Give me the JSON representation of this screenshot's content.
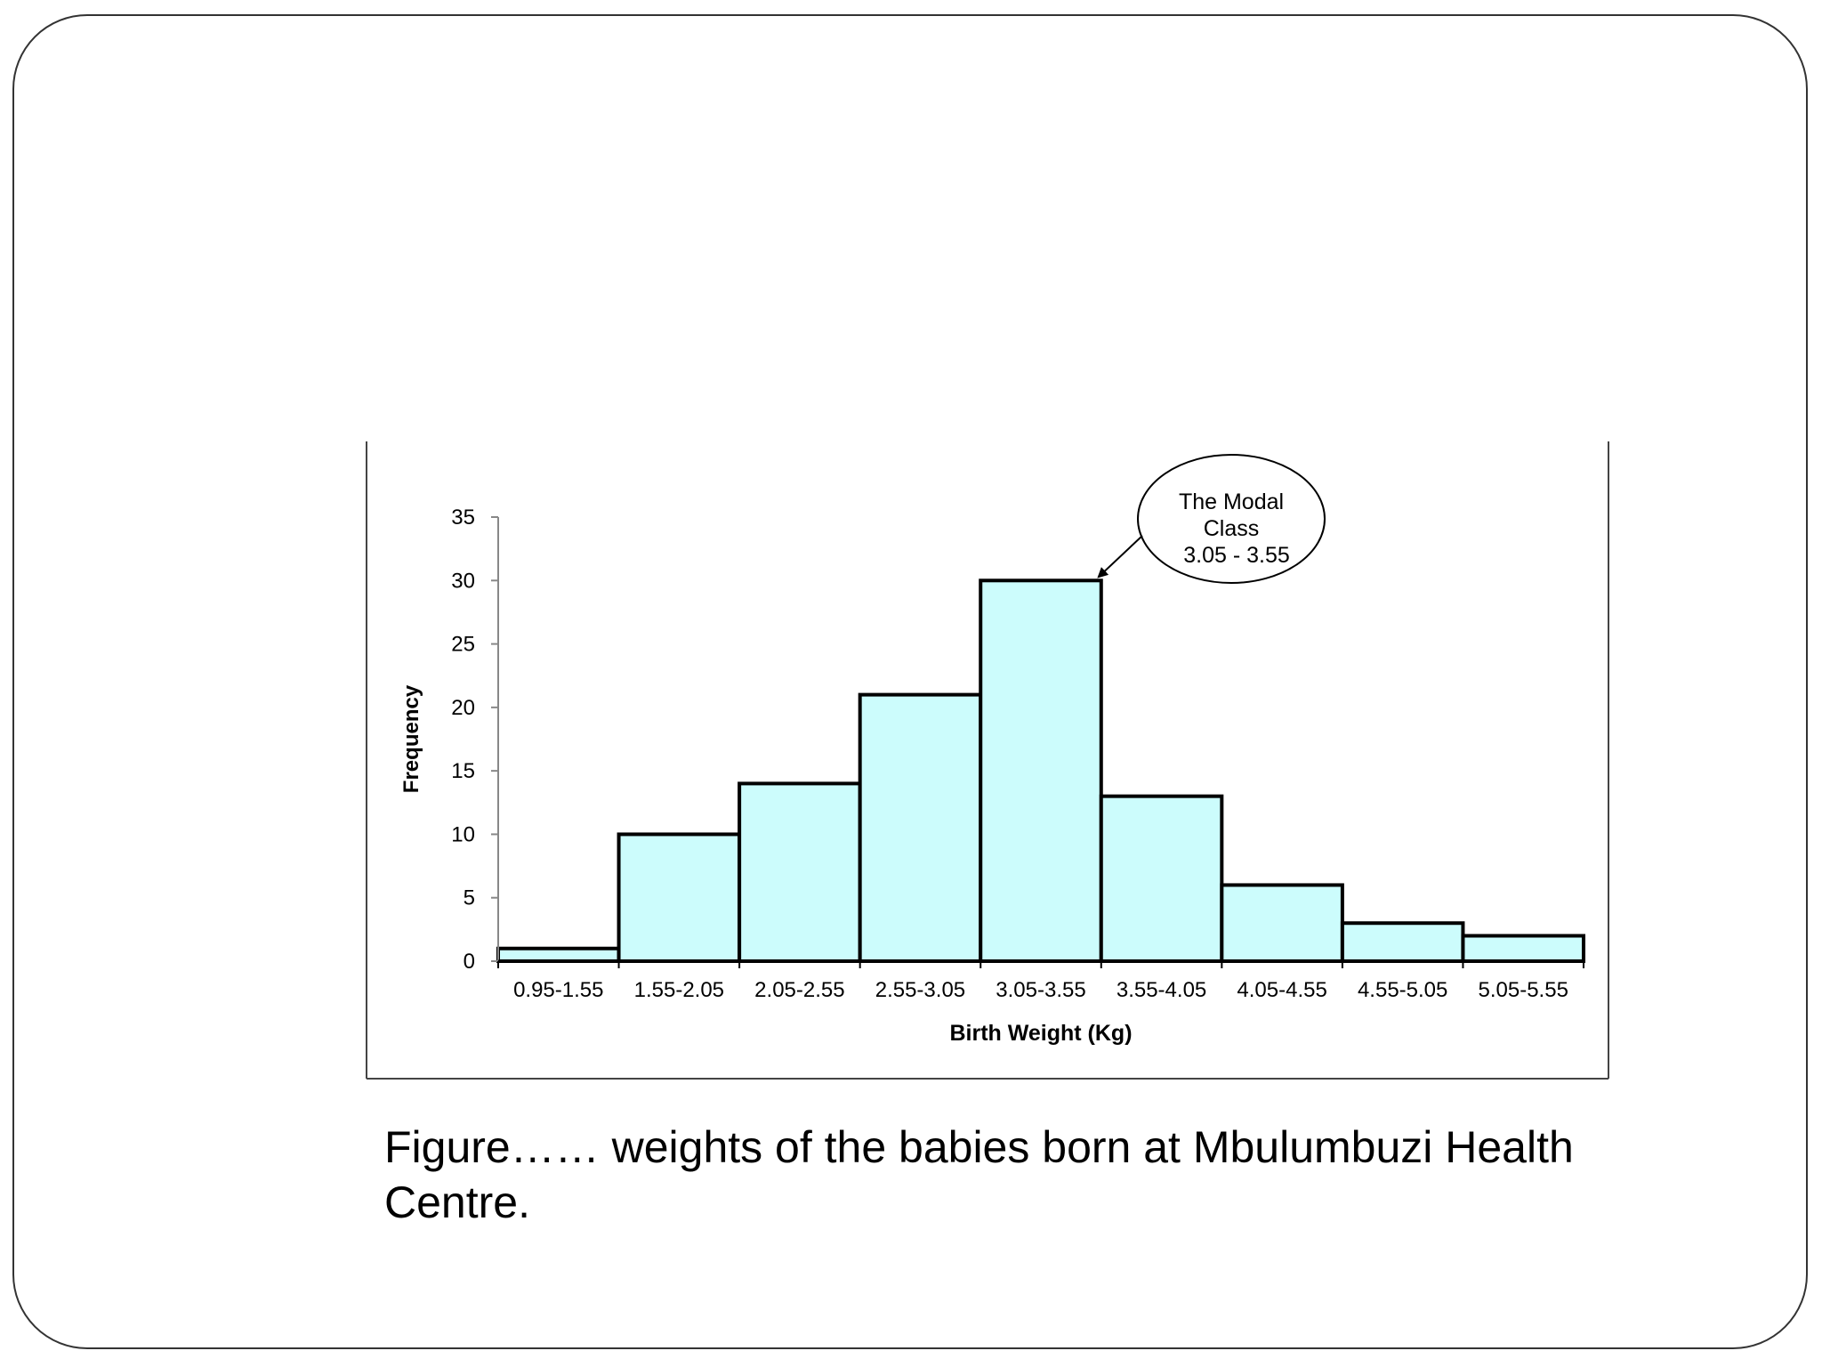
{
  "caption": "Figure…… weights of the babies born at Mbulumbuzi Health Centre.",
  "chart_data": {
    "type": "bar",
    "categories": [
      "0.95-1.55",
      "1.55-2.05",
      "2.05-2.55",
      "2.55-3.05",
      "3.05-3.55",
      "3.55-4.05",
      "4.05-4.55",
      "4.55-5.05",
      "5.05-5.55"
    ],
    "values": [
      1,
      10,
      14,
      21,
      30,
      13,
      6,
      3,
      2
    ],
    "xlabel": "Birth Weight (Kg)",
    "ylabel": "Frequency",
    "ylim": [
      0,
      35
    ],
    "yticks": [
      0,
      5,
      10,
      15,
      20,
      25,
      30,
      35
    ],
    "grid": false,
    "bar_color": "#ccfcfc",
    "bar_edge_color": "#000000",
    "annotation": {
      "lines": [
        "The Modal",
        "Class",
        "3.05 - 3.55"
      ],
      "points_to": "3.05-3.55"
    }
  }
}
